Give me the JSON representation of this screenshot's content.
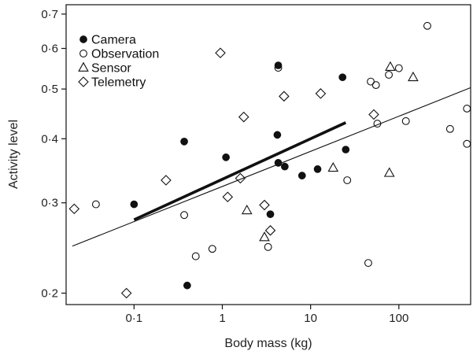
{
  "chart_data": {
    "type": "scatter",
    "title": "",
    "xlabel": "Body mass (kg)",
    "ylabel": "Activity level",
    "x_scale": "log",
    "y_scale": "log",
    "xlim": [
      0.017,
      650
    ],
    "ylim": [
      0.19,
      0.73
    ],
    "x_ticks": [
      {
        "value": 0.1,
        "label": "0·1"
      },
      {
        "value": 1,
        "label": "1"
      },
      {
        "value": 10,
        "label": "10"
      },
      {
        "value": 100,
        "label": "100"
      }
    ],
    "y_ticks": [
      {
        "value": 0.2,
        "label": "0·2"
      },
      {
        "value": 0.3,
        "label": "0·3"
      },
      {
        "value": 0.4,
        "label": "0·4"
      },
      {
        "value": 0.5,
        "label": "0·5"
      },
      {
        "value": 0.6,
        "label": "0·6"
      },
      {
        "value": 0.7,
        "label": "0·7"
      }
    ],
    "legend_position": "top-left",
    "grid": false,
    "series": [
      {
        "name": "Camera",
        "marker": "filled-circle",
        "points": [
          [
            0.1,
            0.298
          ],
          [
            0.37,
            0.395
          ],
          [
            0.4,
            0.207
          ],
          [
            1.1,
            0.368
          ],
          [
            3.5,
            0.285
          ],
          [
            4.2,
            0.407
          ],
          [
            4.3,
            0.556
          ],
          [
            4.3,
            0.359
          ],
          [
            5.1,
            0.353
          ],
          [
            8,
            0.339
          ],
          [
            12,
            0.349
          ],
          [
            23,
            0.527
          ],
          [
            25,
            0.381
          ]
        ]
      },
      {
        "name": "Observation",
        "marker": "open-circle",
        "points": [
          [
            0.037,
            0.298
          ],
          [
            0.37,
            0.284
          ],
          [
            0.5,
            0.236
          ],
          [
            0.77,
            0.244
          ],
          [
            3.3,
            0.246
          ],
          [
            4.3,
            0.55
          ],
          [
            26,
            0.332
          ],
          [
            45,
            0.229
          ],
          [
            48,
            0.517
          ],
          [
            55,
            0.509
          ],
          [
            57,
            0.428
          ],
          [
            77,
            0.533
          ],
          [
            100,
            0.549
          ],
          [
            120,
            0.433
          ],
          [
            210,
            0.664
          ],
          [
            380,
            0.418
          ],
          [
            590,
            0.458
          ],
          [
            590,
            0.391
          ]
        ]
      },
      {
        "name": "Sensor",
        "marker": "open-triangle",
        "points": [
          [
            1.9,
            0.29
          ],
          [
            3,
            0.257
          ],
          [
            18,
            0.351
          ],
          [
            78,
            0.343
          ],
          [
            80,
            0.552
          ],
          [
            145,
            0.527
          ]
        ]
      },
      {
        "name": "Telemetry",
        "marker": "open-diamond",
        "points": [
          [
            0.021,
            0.292
          ],
          [
            0.082,
            0.2
          ],
          [
            0.23,
            0.332
          ],
          [
            0.95,
            0.588
          ],
          [
            1.15,
            0.308
          ],
          [
            1.6,
            0.335
          ],
          [
            1.75,
            0.441
          ],
          [
            3,
            0.297
          ],
          [
            3.5,
            0.265
          ],
          [
            5,
            0.484
          ],
          [
            13,
            0.49
          ],
          [
            52,
            0.446
          ]
        ]
      }
    ],
    "lines": [
      {
        "style": "thick",
        "x": [
          0.1,
          25
        ],
        "y": [
          0.278,
          0.43
        ]
      },
      {
        "style": "thin",
        "x": [
          0.02,
          650
        ],
        "y": [
          0.247,
          0.503
        ]
      }
    ]
  }
}
